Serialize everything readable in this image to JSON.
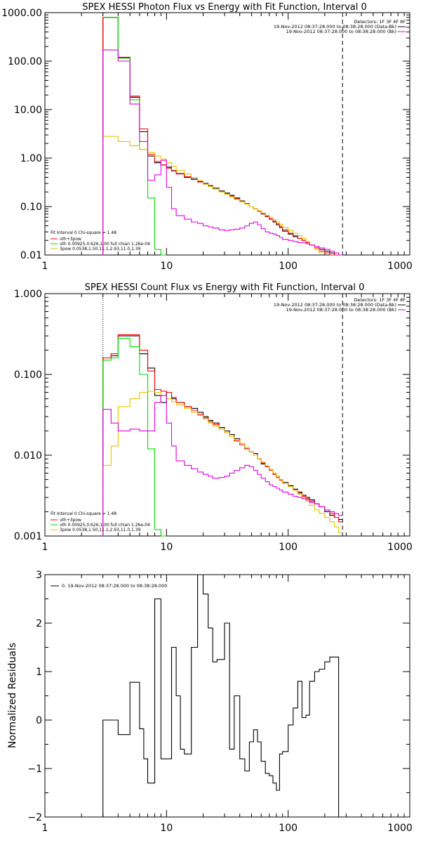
{
  "chart_data": [
    {
      "type": "line",
      "title": "SPEX HESSI Photon Flux vs Energy with Fit Function, Interval 0",
      "xscale": "log",
      "yscale": "log",
      "xlim": [
        1,
        1000
      ],
      "ylim": [
        0.01,
        1000
      ],
      "xticks": [
        1,
        10,
        100,
        1000
      ],
      "xtick_labels": [
        "1",
        "10",
        "100",
        "1000"
      ],
      "yticks": [
        0.01,
        0.1,
        1,
        10,
        100,
        1000
      ],
      "ytick_labels": [
        "0.01",
        "0.10",
        "1.00",
        "10.00",
        "100.00",
        "1000.00"
      ],
      "legend_top_right": [
        "Detectors: 1F 3F 4F 8F",
        "19-Nov-2012 08:37:28.000 to 08:38:28.000 (Data-Bk)",
        "19-Nov-2012 08:37:28.000 to 08:38:28.000 (Bk)"
      ],
      "legend_bottom_left": [
        "Fit Interval 0   Chi-square = 1.48",
        "vth+3pow",
        "vth 0.00925,0.626,1.00  full chian 1.26e-04",
        "3pow 0.0538,1.50,11.1,2.93,11.0,1.39"
      ],
      "vlines": [
        3.0,
        280
      ],
      "series": [
        {
          "color": "#000000",
          "x": [
            3.0,
            4.0,
            5.0,
            6.0,
            7.0,
            8.0,
            9.0,
            10.0,
            11.0,
            12.0,
            14.0,
            16.0,
            18.0,
            20.0,
            22.0,
            24.0,
            27.0,
            30.0,
            33.0,
            36.0,
            40.0,
            44.0,
            48.0,
            52.0,
            56.0,
            60.0,
            65.0,
            70.0,
            75.0,
            80.0,
            85.0,
            90.0,
            100.0,
            110.0,
            120.0,
            130.0,
            140.0,
            150.0,
            165.0,
            180.0,
            200.0,
            220.0,
            240.0,
            260.0,
            280.0
          ],
          "y": [
            0.01,
            800,
            120,
            18,
            3.5,
            1.1,
            0.8,
            0.72,
            0.65,
            0.55,
            0.48,
            0.4,
            0.37,
            0.33,
            0.3,
            0.27,
            0.24,
            0.21,
            0.19,
            0.17,
            0.15,
            0.13,
            0.115,
            0.1,
            0.09,
            0.08,
            0.07,
            0.062,
            0.055,
            0.048,
            0.042,
            0.037,
            0.031,
            0.027,
            0.024,
            0.022,
            0.02,
            0.018,
            0.016,
            0.014,
            0.013,
            0.012,
            0.011,
            0.01,
            0.01
          ]
        },
        {
          "color": "#ff0000",
          "x": [
            3.0,
            4.0,
            5.0,
            6.0,
            7.0,
            8.0,
            9.0,
            10.0,
            11.0,
            12.0,
            14.0,
            16.0,
            18.0,
            20.0,
            22.0,
            24.0,
            27.0,
            30.0,
            33.0,
            36.0,
            40.0,
            44.0,
            48.0,
            52.0,
            56.0,
            60.0,
            65.0,
            70.0,
            75.0,
            80.0,
            85.0,
            90.0,
            100.0,
            110.0,
            120.0,
            130.0,
            140.0,
            150.0,
            165.0,
            180.0,
            200.0,
            220.0,
            240.0,
            260.0,
            280.0
          ],
          "y": [
            0.01,
            800,
            118,
            19,
            4.0,
            1.2,
            0.85,
            0.72,
            0.62,
            0.54,
            0.47,
            0.41,
            0.36,
            0.32,
            0.29,
            0.26,
            0.23,
            0.205,
            0.185,
            0.165,
            0.145,
            0.128,
            0.113,
            0.1,
            0.09,
            0.08,
            0.071,
            0.063,
            0.056,
            0.05,
            0.044,
            0.039,
            0.033,
            0.028,
            0.025,
            0.022,
            0.02,
            0.018,
            0.016,
            0.014,
            0.012,
            0.011,
            0.01,
            0.01,
            0.01
          ]
        },
        {
          "color": "#00dd00",
          "x": [
            3.0,
            4.0,
            5.0,
            6.0,
            7.0,
            8.0,
            9.0,
            10.0
          ],
          "y": [
            800,
            800,
            115,
            16,
            1.5,
            0.15,
            0.013,
            0.01
          ]
        },
        {
          "color": "#e8c000",
          "x": [
            3.0,
            4.0,
            5.0,
            6.0,
            7.0,
            8.0,
            9.0,
            10.0,
            11.0,
            12.0,
            14.0,
            16.0,
            18.0,
            20.0,
            22.0,
            24.0,
            27.0,
            30.0,
            33.0,
            36.0,
            40.0,
            44.0,
            48.0,
            52.0,
            56.0,
            60.0,
            65.0,
            70.0,
            75.0,
            80.0,
            85.0,
            90.0,
            100.0,
            110.0,
            120.0,
            130.0,
            140.0,
            150.0,
            165.0,
            180.0,
            200.0
          ],
          "y": [
            0.01,
            2.8,
            2.2,
            1.8,
            1.5,
            1.3,
            1.1,
            0.95,
            0.8,
            0.68,
            0.56,
            0.47,
            0.4,
            0.34,
            0.29,
            0.26,
            0.23,
            0.2,
            0.18,
            0.16,
            0.14,
            0.125,
            0.112,
            0.1,
            0.09,
            0.082,
            0.074,
            0.066,
            0.06,
            0.054,
            0.048,
            0.043,
            0.037,
            0.032,
            0.028,
            0.025,
            0.022,
            0.019,
            0.016,
            0.013,
            0.011
          ]
        },
        {
          "color": "#e000e0",
          "x": [
            3.0,
            4.0,
            5.0,
            6.0,
            7.0,
            8.0,
            9.0,
            10.0,
            11.0,
            12.0,
            14.0,
            16.0,
            18.0,
            20.0,
            22.0,
            24.0,
            27.0,
            30.0,
            33.0,
            36.0,
            40.0,
            44.0,
            48.0,
            52.0,
            56.0,
            60.0,
            65.0,
            70.0,
            75.0,
            80.0,
            85.0,
            90.0,
            100.0,
            110.0,
            120.0,
            130.0,
            140.0,
            150.0,
            165.0,
            180.0,
            200.0,
            220.0,
            240.0,
            260.0,
            280.0
          ],
          "y": [
            0.01,
            170,
            100,
            13,
            2.2,
            0.35,
            0.45,
            0.9,
            0.25,
            0.09,
            0.065,
            0.055,
            0.048,
            0.045,
            0.04,
            0.038,
            0.036,
            0.033,
            0.032,
            0.033,
            0.034,
            0.036,
            0.04,
            0.045,
            0.048,
            0.042,
            0.035,
            0.03,
            0.028,
            0.027,
            0.025,
            0.023,
            0.021,
            0.02,
            0.019,
            0.018,
            0.018,
            0.017,
            0.016,
            0.015,
            0.014,
            0.013,
            0.012,
            0.011,
            0.01
          ]
        }
      ]
    },
    {
      "type": "line",
      "title": "SPEX HESSI Count Flux vs Energy with Fit Function, Interval 0",
      "xscale": "log",
      "yscale": "log",
      "xlim": [
        1,
        1000
      ],
      "ylim": [
        0.001,
        1
      ],
      "xticks": [
        1,
        10,
        100,
        1000
      ],
      "xtick_labels": [
        "1",
        "10",
        "100",
        "1000"
      ],
      "yticks": [
        0.001,
        0.01,
        0.1,
        1
      ],
      "ytick_labels": [
        "0.001",
        "0.010",
        "0.100",
        "1.000"
      ],
      "legend_top_right": [
        "Detectors: 1F 3F 4F 8F",
        "19-Nov-2012 08:37:28.000 to 08:38:28.000 (Data-Bk)",
        "19-Nov-2012 08:37:28.000 to 08:38:28.000 (Bk)"
      ],
      "legend_bottom_left": [
        "Fit Interval 0   Chi-square = 1.48",
        "vth+3pow",
        "vth 0.00925,0.626,1.00  full chian 1.26e-04",
        "3pow 0.0538,1.50,11.1,2.93,11.0,1.39"
      ],
      "vlines": [
        3.0,
        280
      ],
      "series": [
        {
          "color": "#000000",
          "x": [
            3.0,
            3.5,
            4.0,
            5.0,
            6.0,
            7.0,
            8.0,
            9.0,
            10.0,
            11.0,
            12.0,
            14.0,
            16.0,
            18.0,
            20.0,
            22.0,
            24.0,
            27.0,
            30.0,
            33.0,
            36.0,
            40.0,
            44.0,
            48.0,
            52.0,
            56.0,
            60.0,
            65.0,
            70.0,
            75.0,
            80.0,
            85.0,
            90.0,
            100.0,
            110.0,
            120.0,
            130.0,
            140.0,
            150.0,
            165.0,
            180.0,
            200.0,
            220.0,
            240.0,
            260.0,
            280.0
          ],
          "y": [
            0.001,
            0.16,
            0.17,
            0.3,
            0.3,
            0.18,
            0.12,
            0.055,
            0.045,
            0.06,
            0.05,
            0.045,
            0.04,
            0.038,
            0.034,
            0.03,
            0.027,
            0.025,
            0.022,
            0.02,
            0.018,
            0.016,
            0.0135,
            0.012,
            0.011,
            0.0105,
            0.009,
            0.0078,
            0.0072,
            0.0065,
            0.0058,
            0.0055,
            0.005,
            0.0046,
            0.0042,
            0.0038,
            0.0035,
            0.0032,
            0.003,
            0.0028,
            0.0025,
            0.0023,
            0.002,
            0.0018,
            0.0017,
            0.0016
          ]
        },
        {
          "color": "#ff0000",
          "x": [
            3.0,
            3.5,
            4.0,
            5.0,
            6.0,
            7.0,
            8.0,
            9.0,
            10.0,
            11.0,
            12.0,
            14.0,
            16.0,
            18.0,
            20.0,
            22.0,
            24.0,
            27.0,
            30.0,
            33.0,
            36.0,
            40.0,
            44.0,
            48.0,
            52.0,
            56.0,
            60.0,
            65.0,
            70.0,
            75.0,
            80.0,
            85.0,
            90.0,
            100.0,
            110.0,
            120.0,
            130.0,
            140.0,
            150.0,
            165.0,
            180.0,
            200.0,
            220.0,
            240.0,
            260.0,
            280.0
          ],
          "y": [
            0.001,
            0.16,
            0.18,
            0.31,
            0.31,
            0.2,
            0.11,
            0.065,
            0.062,
            0.06,
            0.052,
            0.045,
            0.04,
            0.036,
            0.032,
            0.029,
            0.026,
            0.024,
            0.021,
            0.019,
            0.017,
            0.015,
            0.0135,
            0.012,
            0.011,
            0.01,
            0.009,
            0.008,
            0.0072,
            0.0065,
            0.0058,
            0.0053,
            0.0049,
            0.0045,
            0.0041,
            0.0037,
            0.0034,
            0.0031,
            0.0029,
            0.0027,
            0.0025,
            0.0023,
            0.0021,
            0.0019,
            0.0017,
            0.0015
          ]
        },
        {
          "color": "#00dd00",
          "x": [
            3.0,
            3.5,
            4.0,
            5.0,
            6.0,
            7.0,
            8.0,
            9.0,
            10.0
          ],
          "y": [
            0.001,
            0.15,
            0.16,
            0.28,
            0.22,
            0.1,
            0.012,
            0.0012,
            0.001
          ]
        },
        {
          "color": "#e8c000",
          "x": [
            3.0,
            3.5,
            4.0,
            5.0,
            6.0,
            7.0,
            8.0,
            9.0,
            10.0,
            11.0,
            12.0,
            14.0,
            16.0,
            18.0,
            20.0,
            22.0,
            24.0,
            27.0,
            30.0,
            33.0,
            36.0,
            40.0,
            44.0,
            48.0,
            52.0,
            56.0,
            60.0,
            65.0,
            70.0,
            75.0,
            80.0,
            85.0,
            90.0,
            100.0,
            110.0,
            120.0,
            130.0,
            140.0,
            150.0,
            165.0,
            180.0,
            200.0,
            220.0,
            240.0,
            260.0,
            280.0
          ],
          "y": [
            0.001,
            0.0075,
            0.013,
            0.04,
            0.05,
            0.06,
            0.062,
            0.06,
            0.055,
            0.05,
            0.046,
            0.042,
            0.038,
            0.034,
            0.031,
            0.028,
            0.025,
            0.023,
            0.021,
            0.019,
            0.017,
            0.0155,
            0.014,
            0.0125,
            0.011,
            0.01,
            0.009,
            0.0082,
            0.0074,
            0.0067,
            0.006,
            0.0055,
            0.005,
            0.0045,
            0.0041,
            0.0037,
            0.0033,
            0.003,
            0.0027,
            0.0024,
            0.0021,
            0.0019,
            0.0017,
            0.0015,
            0.0013,
            0.0011
          ]
        },
        {
          "color": "#e000e0",
          "x": [
            3.0,
            3.5,
            4.0,
            5.0,
            6.0,
            7.0,
            8.0,
            9.0,
            10.0,
            11.0,
            12.0,
            14.0,
            16.0,
            18.0,
            20.0,
            22.0,
            24.0,
            27.0,
            30.0,
            33.0,
            36.0,
            40.0,
            44.0,
            48.0,
            52.0,
            56.0,
            60.0,
            65.0,
            70.0,
            75.0,
            80.0,
            85.0,
            90.0,
            100.0,
            110.0,
            120.0,
            130.0,
            140.0,
            150.0,
            165.0,
            180.0,
            200.0,
            220.0,
            240.0,
            260.0,
            280.0
          ],
          "y": [
            0.001,
            0.037,
            0.025,
            0.02,
            0.021,
            0.02,
            0.02,
            0.045,
            0.055,
            0.025,
            0.013,
            0.0085,
            0.0075,
            0.0068,
            0.0062,
            0.0058,
            0.0055,
            0.0052,
            0.0053,
            0.0055,
            0.006,
            0.0065,
            0.007,
            0.0075,
            0.0072,
            0.0065,
            0.0058,
            0.0052,
            0.0047,
            0.0043,
            0.0041,
            0.0039,
            0.0037,
            0.0035,
            0.0033,
            0.0031,
            0.003,
            0.0029,
            0.0028,
            0.0026,
            0.0025,
            0.0023,
            0.0021,
            0.002,
            0.0019,
            0.0018
          ]
        }
      ]
    },
    {
      "type": "line",
      "title": "",
      "xscale": "log",
      "yscale": "linear",
      "xlim": [
        1,
        1000
      ],
      "ylim": [
        -2,
        3
      ],
      "ylabel": "Normalized Residuals",
      "xticks": [
        1,
        10,
        100,
        1000
      ],
      "xtick_labels": [
        "1",
        "10",
        "100",
        "1000"
      ],
      "yticks": [
        -2,
        -1,
        0,
        1,
        2,
        3
      ],
      "ytick_labels": [
        "−2",
        "−1",
        "0",
        "1",
        "2",
        "3"
      ],
      "legend": [
        "0. 19-Nov-2012 08:37:28.000 to 08:38:28.000"
      ],
      "series": [
        {
          "color": "#000000",
          "x": [
            3.0,
            3.5,
            4.0,
            4.5,
            5.0,
            5.5,
            6.0,
            6.5,
            7.0,
            8.0,
            9.0,
            10.0,
            11.0,
            12.0,
            13.0,
            14.0,
            16.0,
            18.0,
            20.0,
            22.0,
            24.0,
            26.0,
            28.0,
            30.0,
            33.0,
            36.0,
            40.0,
            44.0,
            48.0,
            52.0,
            56.0,
            60.0,
            65.0,
            70.0,
            75.0,
            80.0,
            85.0,
            90.0,
            100.0,
            110.0,
            120.0,
            130.0,
            140.0,
            150.0,
            165.0,
            180.0,
            200.0,
            220.0,
            240.0,
            260.0,
            280.0
          ],
          "y": [
            -2.0,
            0.0,
            0.0,
            -0.3,
            -0.3,
            0.78,
            0.78,
            -0.18,
            -0.8,
            -1.3,
            2.5,
            -0.8,
            -0.8,
            1.5,
            0.5,
            -0.6,
            -0.7,
            1.5,
            3.0,
            2.6,
            1.9,
            1.2,
            1.25,
            1.25,
            2.0,
            -0.6,
            0.5,
            -0.8,
            -1.05,
            -0.45,
            -0.2,
            -0.45,
            -0.85,
            -1.1,
            -1.15,
            -1.3,
            -1.45,
            -0.7,
            -0.65,
            -0.1,
            0.25,
            0.8,
            0.05,
            0.1,
            0.8,
            1.0,
            1.05,
            1.2,
            1.3,
            1.3,
            -2.0
          ]
        }
      ]
    }
  ]
}
